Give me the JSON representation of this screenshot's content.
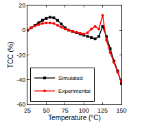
{
  "chart_data": {
    "type": "line",
    "x_label": "Temperature (°C)",
    "y_label": "TCC (%)",
    "x": [
      25,
      30,
      35,
      40,
      45,
      50,
      55,
      60,
      65,
      70,
      75,
      80,
      85,
      90,
      95,
      100,
      105,
      110,
      115,
      120,
      125,
      130,
      135,
      140,
      145,
      150
    ],
    "series": [
      {
        "name": "Simulated",
        "color": "#000000",
        "marker": "square",
        "values": [
          0,
          2,
          4,
          6,
          8,
          9.5,
          10.5,
          10,
          8,
          5,
          2,
          0,
          -1,
          -2,
          -3,
          -4,
          -5,
          -6,
          -7,
          -5,
          3,
          -5,
          -15,
          -25,
          -33,
          -43
        ]
      },
      {
        "name": "Experimental",
        "color": "#ff0000",
        "marker": "circle",
        "values": [
          0,
          2,
          3.5,
          4.5,
          5.5,
          6,
          6,
          5.5,
          4,
          2.5,
          1,
          0,
          -1,
          -1.5,
          -2.5,
          -3,
          -2,
          1,
          3,
          1,
          12,
          -8,
          -18,
          -26,
          -34,
          -42
        ]
      }
    ],
    "xlim": [
      25,
      150
    ],
    "xticks": [
      25,
      50,
      75,
      100,
      125,
      150
    ],
    "ylim": [
      -60,
      20
    ],
    "yticks": [
      -60,
      -40,
      -20,
      0,
      20
    ],
    "grid": false,
    "legend": "lower left"
  }
}
